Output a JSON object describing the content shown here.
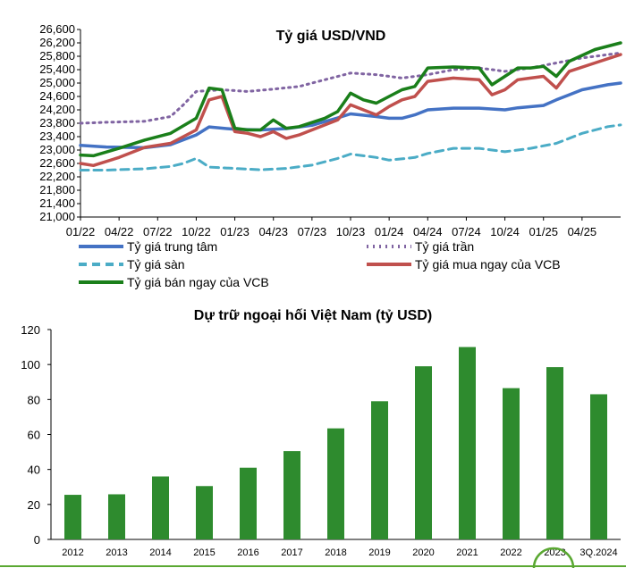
{
  "chart_data": [
    {
      "type": "line",
      "title": "Tỷ giá USD/VND",
      "ylim": [
        21000,
        26600
      ],
      "yticks": [
        "21,000",
        "21,400",
        "21,800",
        "22,200",
        "22,600",
        "23,000",
        "23,400",
        "23,800",
        "24,200",
        "24,600",
        "25,000",
        "25,400",
        "25,800",
        "26,200",
        "26,600"
      ],
      "ytick_values": [
        21000,
        21400,
        21800,
        22200,
        22600,
        23000,
        23400,
        23800,
        24200,
        24600,
        25000,
        25400,
        25800,
        26200,
        26600
      ],
      "xlim": [
        "2022-01",
        "2025-07"
      ],
      "x_ticks": [
        {
          "label": "01/22",
          "x": "2022-01"
        },
        {
          "label": "04/22",
          "x": "2022-04"
        },
        {
          "label": "07/22",
          "x": "2022-07"
        },
        {
          "label": "10/22",
          "x": "2022-10"
        },
        {
          "label": "01/23",
          "x": "2023-01"
        },
        {
          "label": "04/23",
          "x": "2023-04"
        },
        {
          "label": "07/23",
          "x": "2023-07"
        },
        {
          "label": "10/23",
          "x": "2023-10"
        },
        {
          "label": "01/24",
          "x": "2024-01"
        },
        {
          "label": "04/24",
          "x": "2024-04"
        },
        {
          "label": "07/24",
          "x": "2024-07"
        },
        {
          "label": "10/24",
          "x": "2024-10"
        },
        {
          "label": "01/25",
          "x": "2025-01"
        },
        {
          "label": "04/25",
          "x": "2025-04"
        }
      ],
      "legend_position": "bottom",
      "series": [
        {
          "name": "Tỷ giá trung tâm",
          "color": "#4472c4",
          "style": "solid",
          "points": [
            [
              "2022-01",
              23140
            ],
            [
              "2022-03",
              23090
            ],
            [
              "2022-06",
              23070
            ],
            [
              "2022-08",
              23160
            ],
            [
              "2022-10",
              23450
            ],
            [
              "2022-11",
              23690
            ],
            [
              "2023-01",
              23620
            ],
            [
              "2023-03",
              23600
            ],
            [
              "2023-05",
              23640
            ],
            [
              "2023-07",
              23740
            ],
            [
              "2023-09",
              23960
            ],
            [
              "2023-10",
              24080
            ],
            [
              "2023-12",
              24000
            ],
            [
              "2024-01",
              23950
            ],
            [
              "2024-02",
              23950
            ],
            [
              "2024-03",
              24050
            ],
            [
              "2024-04",
              24200
            ],
            [
              "2024-06",
              24250
            ],
            [
              "2024-08",
              24250
            ],
            [
              "2024-10",
              24200
            ],
            [
              "2024-11",
              24260
            ],
            [
              "2025-01",
              24330
            ],
            [
              "2025-02",
              24500
            ],
            [
              "2025-04",
              24800
            ],
            [
              "2025-06",
              24950
            ],
            [
              "2025-07",
              25000
            ]
          ]
        },
        {
          "name": "Tỷ giá trần",
          "color": "#8064a2",
          "style": "dotted",
          "points": [
            [
              "2022-01",
              23800
            ],
            [
              "2022-03",
              23830
            ],
            [
              "2022-06",
              23860
            ],
            [
              "2022-08",
              24000
            ],
            [
              "2022-09",
              24350
            ],
            [
              "2022-10",
              24750
            ],
            [
              "2022-12",
              24800
            ],
            [
              "2023-02",
              24750
            ],
            [
              "2023-04",
              24820
            ],
            [
              "2023-06",
              24900
            ],
            [
              "2023-08",
              25100
            ],
            [
              "2023-10",
              25300
            ],
            [
              "2023-12",
              25250
            ],
            [
              "2024-02",
              25150
            ],
            [
              "2024-04",
              25250
            ],
            [
              "2024-06",
              25400
            ],
            [
              "2024-08",
              25450
            ],
            [
              "2024-10",
              25350
            ],
            [
              "2024-12",
              25450
            ],
            [
              "2025-02",
              25600
            ],
            [
              "2025-04",
              25750
            ],
            [
              "2025-07",
              25900
            ]
          ]
        },
        {
          "name": "Tỷ giá sàn",
          "color": "#4bacc6",
          "style": "dashed",
          "points": [
            [
              "2022-01",
              22400
            ],
            [
              "2022-03",
              22400
            ],
            [
              "2022-06",
              22440
            ],
            [
              "2022-08",
              22510
            ],
            [
              "2022-09",
              22600
            ],
            [
              "2022-10",
              22750
            ],
            [
              "2022-11",
              22490
            ],
            [
              "2023-01",
              22450
            ],
            [
              "2023-03",
              22410
            ],
            [
              "2023-05",
              22450
            ],
            [
              "2023-07",
              22550
            ],
            [
              "2023-09",
              22750
            ],
            [
              "2023-10",
              22880
            ],
            [
              "2023-12",
              22780
            ],
            [
              "2024-01",
              22700
            ],
            [
              "2024-03",
              22780
            ],
            [
              "2024-04",
              22900
            ],
            [
              "2024-06",
              23050
            ],
            [
              "2024-08",
              23050
            ],
            [
              "2024-10",
              22950
            ],
            [
              "2024-12",
              23050
            ],
            [
              "2025-02",
              23200
            ],
            [
              "2025-04",
              23500
            ],
            [
              "2025-06",
              23700
            ],
            [
              "2025-07",
              23750
            ]
          ]
        },
        {
          "name": "Tỷ giá mua ngay của VCB",
          "color": "#c0504d",
          "style": "solid",
          "points": [
            [
              "2022-01",
              22600
            ],
            [
              "2022-02",
              22540
            ],
            [
              "2022-04",
              22780
            ],
            [
              "2022-06",
              23080
            ],
            [
              "2022-08",
              23200
            ],
            [
              "2022-10",
              23600
            ],
            [
              "2022-11",
              24500
            ],
            [
              "2022-12",
              24600
            ],
            [
              "2023-01",
              23550
            ],
            [
              "2023-02",
              23500
            ],
            [
              "2023-03",
              23400
            ],
            [
              "2023-04",
              23550
            ],
            [
              "2023-05",
              23350
            ],
            [
              "2023-06",
              23450
            ],
            [
              "2023-08",
              23750
            ],
            [
              "2023-09",
              23900
            ],
            [
              "2023-10",
              24350
            ],
            [
              "2023-11",
              24200
            ],
            [
              "2023-12",
              24050
            ],
            [
              "2024-01",
              24300
            ],
            [
              "2024-02",
              24500
            ],
            [
              "2024-03",
              24600
            ],
            [
              "2024-04",
              25050
            ],
            [
              "2024-06",
              25150
            ],
            [
              "2024-08",
              25100
            ],
            [
              "2024-09",
              24650
            ],
            [
              "2024-10",
              24800
            ],
            [
              "2024-11",
              25100
            ],
            [
              "2024-12",
              25150
            ],
            [
              "2025-01",
              25200
            ],
            [
              "2025-02",
              24850
            ],
            [
              "2025-03",
              25350
            ],
            [
              "2025-05",
              25600
            ],
            [
              "2025-07",
              25850
            ]
          ]
        },
        {
          "name": "Tỷ giá bán ngay của VCB",
          "color": "#1a7f1a",
          "style": "solid",
          "points": [
            [
              "2022-01",
              22850
            ],
            [
              "2022-02",
              22830
            ],
            [
              "2022-04",
              23050
            ],
            [
              "2022-06",
              23300
            ],
            [
              "2022-08",
              23500
            ],
            [
              "2022-10",
              23950
            ],
            [
              "2022-11",
              24850
            ],
            [
              "2022-12",
              24800
            ],
            [
              "2023-01",
              23650
            ],
            [
              "2023-02",
              23600
            ],
            [
              "2023-03",
              23600
            ],
            [
              "2023-04",
              23900
            ],
            [
              "2023-05",
              23650
            ],
            [
              "2023-06",
              23700
            ],
            [
              "2023-08",
              23950
            ],
            [
              "2023-09",
              24150
            ],
            [
              "2023-10",
              24700
            ],
            [
              "2023-11",
              24500
            ],
            [
              "2023-12",
              24400
            ],
            [
              "2024-01",
              24600
            ],
            [
              "2024-02",
              24800
            ],
            [
              "2024-03",
              24900
            ],
            [
              "2024-04",
              25450
            ],
            [
              "2024-06",
              25480
            ],
            [
              "2024-08",
              25450
            ],
            [
              "2024-09",
              24950
            ],
            [
              "2024-10",
              25200
            ],
            [
              "2024-11",
              25450
            ],
            [
              "2024-12",
              25450
            ],
            [
              "2025-01",
              25500
            ],
            [
              "2025-02",
              25200
            ],
            [
              "2025-03",
              25650
            ],
            [
              "2025-05",
              26000
            ],
            [
              "2025-07",
              26200
            ]
          ]
        }
      ]
    },
    {
      "type": "bar",
      "title": "Dự trữ ngoại hối Việt Nam (tỷ USD)",
      "categories": [
        "2012",
        "2013",
        "2014",
        "2015",
        "2016",
        "2017",
        "2018",
        "2019",
        "2020",
        "2021",
        "2022",
        "2023",
        "3Q.2024"
      ],
      "values": [
        25.5,
        25.8,
        36,
        30.5,
        41,
        50.5,
        63.5,
        79,
        99,
        110,
        86.5,
        98.5,
        83
      ],
      "ylim": [
        0,
        120
      ],
      "yticks": [
        "0",
        "20",
        "40",
        "60",
        "80",
        "100",
        "120"
      ],
      "ytick_values": [
        0,
        20,
        40,
        60,
        80,
        100,
        120
      ],
      "color": "#2e8b2e"
    }
  ]
}
